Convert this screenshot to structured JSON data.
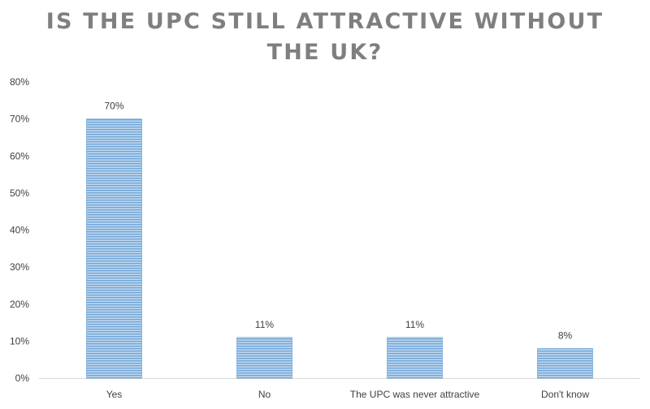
{
  "chart_data": {
    "type": "bar",
    "title": "IS THE UPC STILL ATTRACTIVE WITHOUT THE UK?",
    "categories": [
      "Yes",
      "No",
      "The UPC was never attractive",
      "Don't know"
    ],
    "values": [
      70,
      11,
      11,
      8
    ],
    "data_labels": [
      "70%",
      "11%",
      "11%",
      "8%"
    ],
    "ylim": [
      0,
      80
    ],
    "yticks": [
      0,
      10,
      20,
      30,
      40,
      50,
      60,
      70,
      80
    ],
    "ytick_labels": [
      "0%",
      "10%",
      "20%",
      "30%",
      "40%",
      "50%",
      "60%",
      "70%",
      "80%"
    ],
    "xlabel": "",
    "ylabel": "",
    "grid": false,
    "legend": "none",
    "bar_color": "#9dc3e6",
    "bar_stripe_color": "#5b9bd5"
  }
}
